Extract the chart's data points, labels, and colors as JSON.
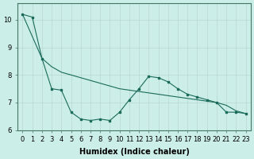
{
  "xlabel": "Humidex (Indice chaleur)",
  "bg_color": "#cceee8",
  "grid_color": "#b8d8d0",
  "line_color": "#1a6b5a",
  "line1_x": [
    0,
    1,
    2,
    3,
    4,
    5,
    6,
    7,
    8,
    9,
    10,
    11,
    12,
    13,
    14,
    15,
    16,
    17,
    18,
    19,
    20,
    21,
    22,
    23
  ],
  "line1_y": [
    10.2,
    10.1,
    8.6,
    7.5,
    7.45,
    6.65,
    6.4,
    6.35,
    6.4,
    6.35,
    6.65,
    7.1,
    7.5,
    7.95,
    7.9,
    7.75,
    7.5,
    7.3,
    7.2,
    7.1,
    7.0,
    6.65,
    6.65,
    6.6
  ],
  "line2_x": [
    0,
    2,
    3,
    4,
    10,
    11,
    12,
    13,
    14,
    15,
    16,
    17,
    18,
    19,
    20,
    21,
    22,
    23
  ],
  "line2_y": [
    10.2,
    8.6,
    8.3,
    8.1,
    7.5,
    7.45,
    7.4,
    7.35,
    7.3,
    7.25,
    7.2,
    7.15,
    7.1,
    7.05,
    7.0,
    6.9,
    6.7,
    6.6
  ],
  "ylim": [
    6.0,
    10.6
  ],
  "xlim": [
    -0.5,
    23.5
  ],
  "yticks": [
    6,
    7,
    8,
    9,
    10
  ],
  "xticks": [
    0,
    1,
    2,
    3,
    4,
    5,
    6,
    7,
    8,
    9,
    10,
    11,
    12,
    13,
    14,
    15,
    16,
    17,
    18,
    19,
    20,
    21,
    22,
    23
  ],
  "xlabel_fontsize": 7,
  "tick_fontsize": 6
}
